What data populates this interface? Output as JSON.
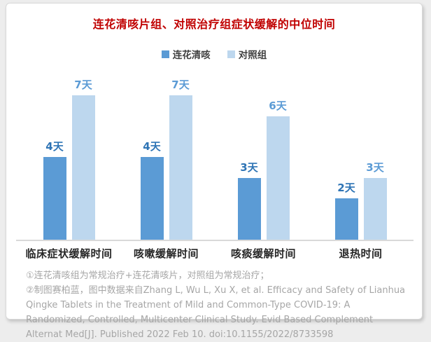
{
  "page": {
    "background": "#ededed",
    "card_background": "#ffffff",
    "card_border": "#d9d9d9"
  },
  "chart_data": {
    "type": "bar",
    "title": "连花清咳片组、对照治疗组症状缓解的中位时间",
    "title_color": "#c00000",
    "categories": [
      "临床症状缓解时间",
      "咳嗽缓解时间",
      "咳痰缓解时间",
      "退热时间"
    ],
    "series": [
      {
        "name": "连花清咳",
        "color": "#5b9bd5",
        "label_color": "#2e74b5",
        "values": [
          4,
          4,
          3,
          2
        ]
      },
      {
        "name": "对照组",
        "color": "#bdd7ee",
        "label_color": "#5b9bd5",
        "values": [
          7,
          7,
          6,
          3
        ]
      }
    ],
    "unit": "天",
    "value_labels": [
      [
        "4天",
        "7天"
      ],
      [
        "4天",
        "7天"
      ],
      [
        "3天",
        "6天"
      ],
      [
        "2天",
        "3天"
      ]
    ],
    "ylim": [
      0,
      7
    ],
    "grid": false,
    "legend_position": "top",
    "axis_line_color": "#d9d9d9"
  },
  "footnotes": [
    "①连花清咳组为常规治疗+连花清咳片，对照组为常规治疗；",
    "②制图赛柏蓝，图中数据来自Zhang L, Wu L, Xu X, et al. Efficacy and Safety of Lianhua Qingke Tablets in the Treatment of Mild and Common-Type COVID-19: A Randomized, Controlled, Multicenter Clinical Study. Evid Based Complement Alternat Med[J]. Published 2022 Feb 10. doi:10.1155/2022/8733598"
  ]
}
